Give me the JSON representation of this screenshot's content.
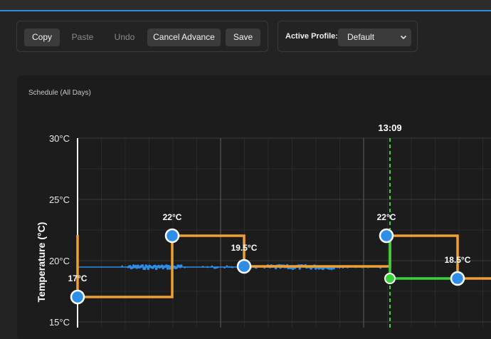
{
  "toolbar": {
    "copy_label": "Copy",
    "paste_label": "Paste",
    "undo_label": "Undo",
    "cancel_advance_label": "Cancel Advance",
    "save_label": "Save"
  },
  "profile": {
    "label": "Active Profile:",
    "selected": "Default"
  },
  "panel": {
    "title": "Schedule (All Days)"
  },
  "colors": {
    "schedule": "#f0a030",
    "actual": "#2e8de6",
    "current": "#3ad33a",
    "now_line": "#3ad33a"
  },
  "chart_data": {
    "type": "line",
    "title": "Schedule (All Days)",
    "ylabel": "Temperature (°C)",
    "yticks": [
      "30°C",
      "25°C",
      "20°C",
      "15°C"
    ],
    "ylim": [
      15,
      30
    ],
    "now_label": "13:09",
    "setpoints": [
      {
        "label": "17°C",
        "value": 17
      },
      {
        "label": "22°C",
        "value": 22
      },
      {
        "label": "19.5°C",
        "value": 19.5
      },
      {
        "label": "22°C",
        "value": 22
      },
      {
        "label": "18.5°C",
        "value": 18.5
      }
    ],
    "current_value": 18.5,
    "actual_value": 19.5,
    "grid": true
  }
}
